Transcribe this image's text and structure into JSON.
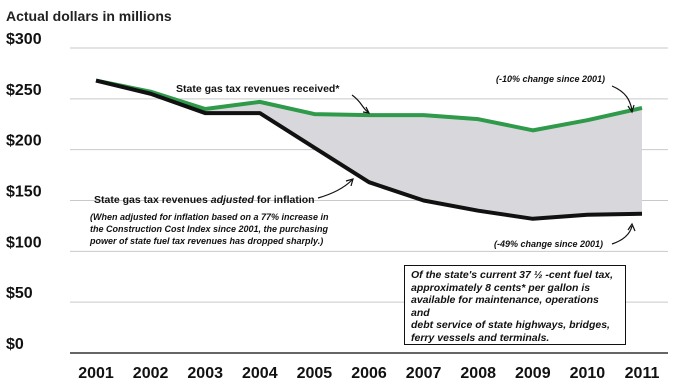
{
  "chart_data": {
    "type": "line",
    "units_label": "Actual dollars in millions",
    "categories": [
      "2001",
      "2002",
      "2003",
      "2004",
      "2005",
      "2006",
      "2007",
      "2008",
      "2009",
      "2010",
      "2011"
    ],
    "y_ticks": [
      "$300",
      "$250",
      "$200",
      "$150",
      "$100",
      "$50",
      "$0"
    ],
    "ylim": [
      0,
      300
    ],
    "grid": "horizontal",
    "series": [
      {
        "name": "State gas tax revenues received*",
        "color": "#2e9a4a",
        "values": [
          268,
          257,
          240,
          247,
          235,
          234,
          234,
          230,
          219,
          229,
          241
        ]
      },
      {
        "name": "State gas tax revenues adjusted for inflation",
        "color": "#111111",
        "values": [
          268,
          255,
          236,
          236,
          202,
          168,
          150,
          140,
          132,
          136,
          137
        ]
      }
    ],
    "shade_between_series": true,
    "shade_color": "#d8d8dc",
    "annotations": {
      "received_label": "State gas tax revenues received*",
      "received_change": "(-10% change since 2001)",
      "adjusted_label_pre": "State gas tax revenues ",
      "adjusted_label_em": "adjusted",
      "adjusted_label_post": " for inflation",
      "adjusted_note_1": "(When adjusted for inflation based on a 77% increase in",
      "adjusted_note_2": "the Construction Cost Index since 2001, the purchasing",
      "adjusted_note_3": "power of state fuel tax revenues has dropped sharply.)",
      "adjusted_change": "(-49% change since 2001)"
    },
    "note_box": [
      "Of the state's current 37 ½ -cent fuel tax,",
      "approximately 8 cents* per gallon is",
      "available for maintenance, operations and",
      "debt service of state highways, bridges,",
      "ferry vessels and terminals."
    ]
  }
}
